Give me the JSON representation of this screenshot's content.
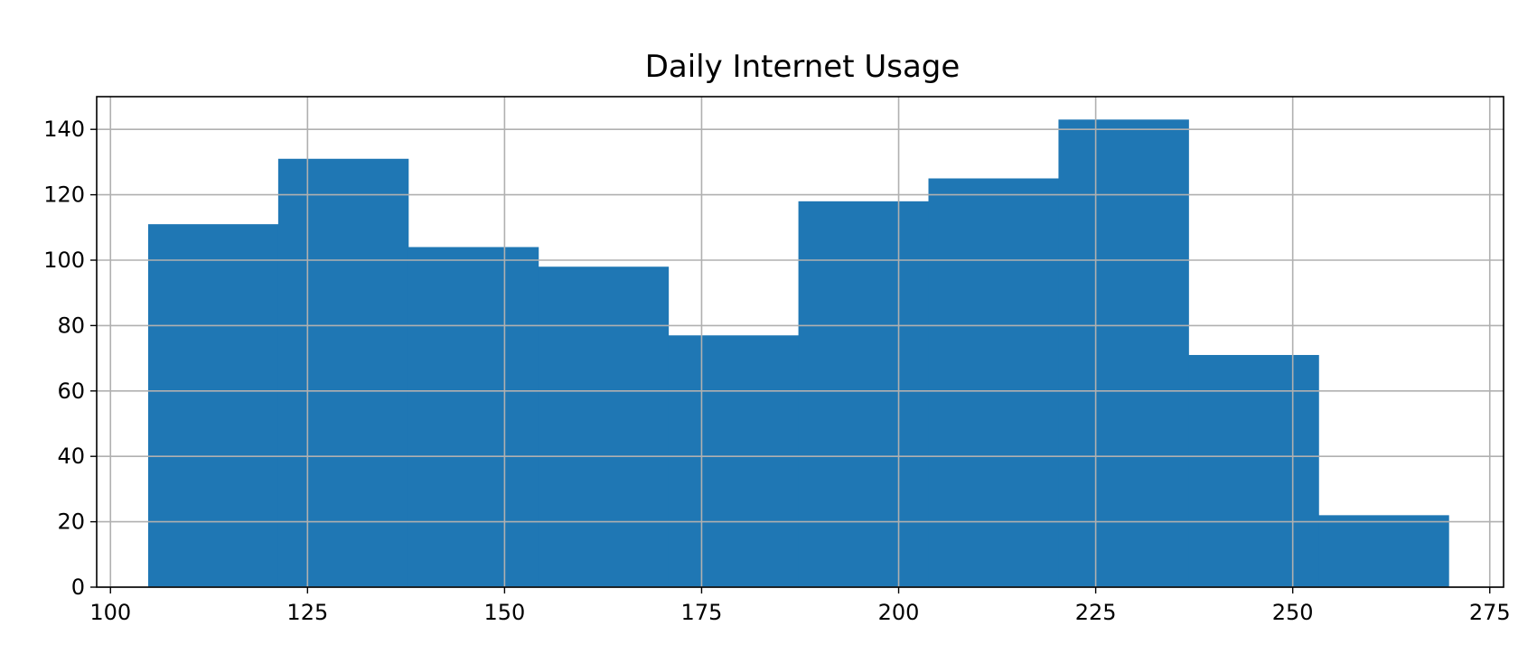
{
  "chart_data": {
    "type": "bar",
    "subtype": "histogram",
    "title": "Daily Internet Usage",
    "xlabel": "",
    "ylabel": "",
    "xlim": [
      98.25,
      276.75
    ],
    "ylim": [
      0,
      150
    ],
    "xticks": [
      100,
      125,
      150,
      175,
      200,
      225,
      250,
      275
    ],
    "yticks": [
      0,
      20,
      40,
      60,
      80,
      100,
      120,
      140
    ],
    "grid": true,
    "bin_edges": [
      104.78,
      121.28,
      137.78,
      154.28,
      170.78,
      187.28,
      203.78,
      220.28,
      236.78,
      253.28,
      269.78
    ],
    "counts": [
      111,
      131,
      104,
      98,
      77,
      118,
      125,
      143,
      71,
      22
    ],
    "bar_color": "#1f77b4",
    "grid_color": "#b0b0b0"
  }
}
